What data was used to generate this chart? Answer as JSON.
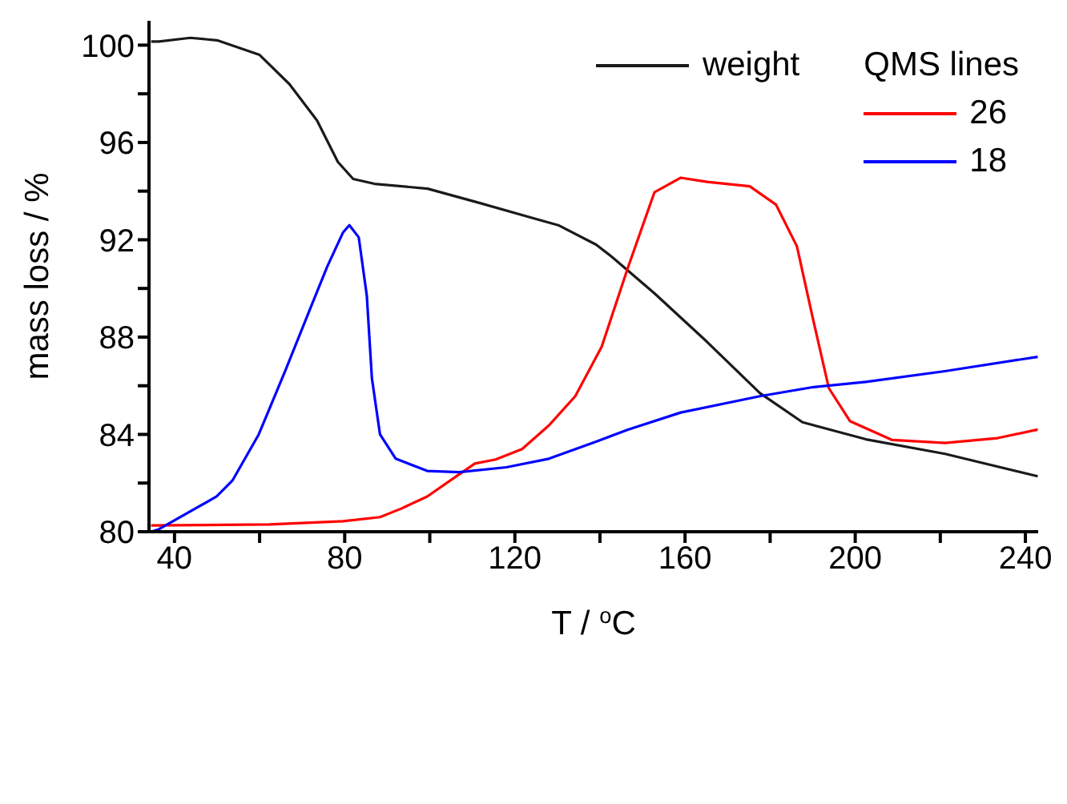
{
  "chart_data": {
    "type": "line",
    "xlabel": "T / $^{o}$C",
    "ylabel": "mass loss / %",
    "xlim": [
      34,
      243
    ],
    "ylim": [
      80,
      101
    ],
    "xticks": [
      40,
      {
        "value": 60,
        "label": null
      },
      80,
      {
        "value": 100,
        "label": null
      },
      120,
      {
        "value": 140,
        "label": null
      },
      160,
      {
        "value": 180,
        "label": null
      },
      200,
      {
        "value": 220,
        "label": null
      },
      240
    ],
    "yticks": [
      80,
      {
        "value": 82,
        "label": null
      },
      84,
      {
        "value": 86,
        "label": null
      },
      88,
      {
        "value": 90,
        "label": null
      },
      92,
      {
        "value": 94,
        "label": null
      },
      96,
      {
        "value": 98,
        "label": null
      },
      100
    ],
    "legend": "top right",
    "legend_title": "QMS lines",
    "grid": false,
    "marker": "none",
    "line_style": "solid",
    "series": [
      {
        "name": "weight",
        "color": "#1a1a1a",
        "x": [
          34.5,
          36.3,
          43.7,
          50,
          60,
          67,
          73.5,
          78.4,
          82,
          87,
          99.5,
          112,
          124,
          130.2,
          139.1,
          142.8,
          152.8,
          165.2,
          177.6,
          187.6,
          202.5,
          221.1,
          242.9
        ],
        "values": [
          100.15,
          100.15,
          100.3,
          100.2,
          99.6,
          98.4,
          96.9,
          95.2,
          94.5,
          94.3,
          94.1,
          93.5,
          92.9,
          92.6,
          91.8,
          91.3,
          89.8,
          87.8,
          85.7,
          84.5,
          83.8,
          83.2,
          82.28
        ]
      },
      {
        "name": "26",
        "color": "#ff0000",
        "x": [
          34.5,
          62.3,
          79.6,
          88.3,
          93.3,
          99.4,
          105.6,
          110.6,
          115.5,
          121.7,
          128,
          134.2,
          140.4,
          146.6,
          152.8,
          159,
          165.2,
          175.2,
          181.4,
          186.3,
          190,
          193.8,
          198.8,
          208.7,
          221.1,
          233.5,
          242.9
        ],
        "values": [
          80.26,
          80.3,
          80.43,
          80.6,
          80.95,
          81.45,
          82.2,
          82.8,
          82.97,
          83.4,
          84.37,
          85.57,
          87.6,
          90.87,
          93.95,
          94.55,
          94.38,
          94.2,
          93.44,
          91.73,
          88.8,
          85.9,
          84.54,
          83.77,
          83.65,
          83.85,
          84.2
        ]
      },
      {
        "name": "18",
        "color": "#0000ff",
        "x": [
          34.5,
          36.3,
          49.9,
          53.6,
          59.8,
          66,
          72.2,
          75.9,
          79.6,
          81.1,
          83.3,
          85.2,
          86.4,
          88.3,
          92,
          99.4,
          106.9,
          118,
          128,
          139.1,
          146.6,
          159,
          177.6,
          190,
          202.5,
          221.1,
          242.9
        ],
        "values": [
          80,
          80.1,
          81.45,
          82.1,
          84,
          86.6,
          89.3,
          90.9,
          92.3,
          92.6,
          92.1,
          89.7,
          86.3,
          84,
          83,
          82.5,
          82.45,
          82.65,
          83,
          83.7,
          84.2,
          84.9,
          85.57,
          85.94,
          86.16,
          86.6,
          87.19
        ]
      }
    ]
  }
}
